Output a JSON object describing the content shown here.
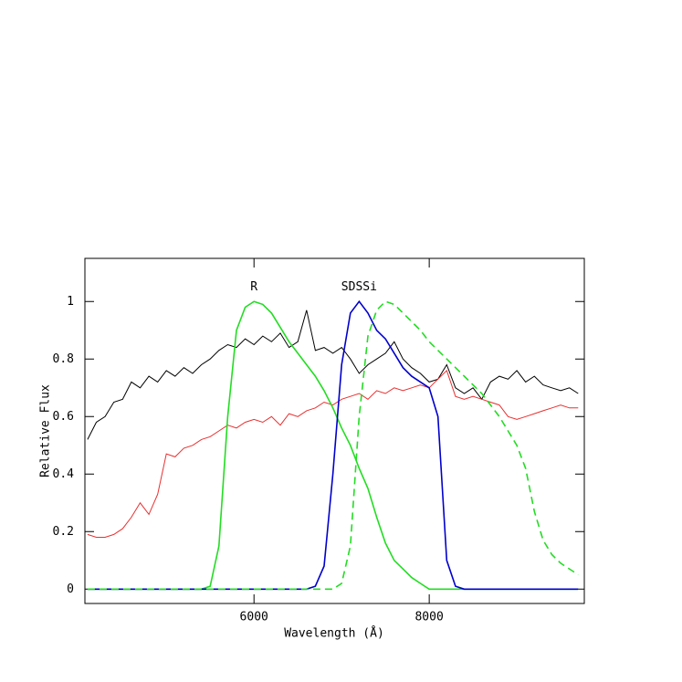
{
  "chart_data": {
    "type": "line",
    "xlabel": "Wavelength (Å)",
    "ylabel": "Relative Flux",
    "xlim": [
      4070,
      9770
    ],
    "ylim": [
      -0.05,
      1.15
    ],
    "xticks": [
      6000,
      8000
    ],
    "yticks": [
      0,
      0.2,
      0.4,
      0.6,
      0.8,
      1
    ],
    "series": [
      {
        "color": "#000000",
        "x": [
          4100,
          4200,
          4300,
          4400,
          4500,
          4600,
          4700,
          4800,
          4900,
          5000,
          5100,
          5200,
          5300,
          5400,
          5500,
          5600,
          5700,
          5800,
          5900,
          6000,
          6100,
          6200,
          6300,
          6400,
          6500,
          6600,
          6700,
          6800,
          6900,
          7000,
          7100,
          7200,
          7300,
          7400,
          7500,
          7600,
          7700,
          7800,
          7900,
          8000,
          8100,
          8200,
          8300,
          8400,
          8500,
          8600,
          8700,
          8800,
          8900,
          9000,
          9100,
          9200,
          9300,
          9400,
          9500,
          9600,
          9700
        ],
        "values": [
          0.52,
          0.58,
          0.6,
          0.65,
          0.66,
          0.72,
          0.7,
          0.74,
          0.72,
          0.76,
          0.74,
          0.77,
          0.75,
          0.78,
          0.8,
          0.83,
          0.85,
          0.84,
          0.87,
          0.85,
          0.88,
          0.86,
          0.89,
          0.84,
          0.86,
          0.97,
          0.83,
          0.84,
          0.82,
          0.84,
          0.8,
          0.75,
          0.78,
          0.8,
          0.82,
          0.86,
          0.8,
          0.77,
          0.75,
          0.72,
          0.73,
          0.78,
          0.7,
          0.68,
          0.7,
          0.66,
          0.72,
          0.74,
          0.73,
          0.76,
          0.72,
          0.74,
          0.71,
          0.7,
          0.69,
          0.7,
          0.68
        ]
      },
      {
        "color": "#e83030",
        "x": [
          4100,
          4200,
          4300,
          4400,
          4500,
          4600,
          4700,
          4800,
          4900,
          5000,
          5100,
          5200,
          5300,
          5400,
          5500,
          5600,
          5700,
          5800,
          5900,
          6000,
          6100,
          6200,
          6300,
          6400,
          6500,
          6600,
          6700,
          6800,
          6900,
          7000,
          7100,
          7200,
          7300,
          7400,
          7500,
          7600,
          7700,
          7800,
          7900,
          8000,
          8100,
          8200,
          8300,
          8400,
          8500,
          8600,
          8700,
          8800,
          8900,
          9000,
          9100,
          9200,
          9300,
          9400,
          9500,
          9600,
          9700
        ],
        "values": [
          0.19,
          0.18,
          0.18,
          0.19,
          0.21,
          0.25,
          0.3,
          0.26,
          0.33,
          0.47,
          0.46,
          0.49,
          0.5,
          0.52,
          0.53,
          0.55,
          0.57,
          0.56,
          0.58,
          0.59,
          0.58,
          0.6,
          0.57,
          0.61,
          0.6,
          0.62,
          0.63,
          0.65,
          0.64,
          0.66,
          0.67,
          0.68,
          0.66,
          0.69,
          0.68,
          0.7,
          0.69,
          0.7,
          0.71,
          0.7,
          0.73,
          0.76,
          0.67,
          0.66,
          0.67,
          0.66,
          0.65,
          0.64,
          0.6,
          0.59,
          0.6,
          0.61,
          0.62,
          0.63,
          0.64,
          0.63,
          0.63
        ]
      },
      {
        "name": "R",
        "color": "#22dd22",
        "x": [
          4100,
          5400,
          5500,
          5600,
          5700,
          5800,
          5900,
          6000,
          6100,
          6200,
          6300,
          6400,
          6500,
          6600,
          6700,
          6800,
          6900,
          7000,
          7100,
          7200,
          7300,
          7400,
          7500,
          7600,
          7700,
          7800,
          7900,
          8000,
          9700
        ],
        "values": [
          0,
          0,
          0.01,
          0.15,
          0.6,
          0.9,
          0.98,
          1.0,
          0.99,
          0.96,
          0.91,
          0.86,
          0.82,
          0.78,
          0.74,
          0.69,
          0.63,
          0.56,
          0.5,
          0.42,
          0.35,
          0.25,
          0.16,
          0.1,
          0.07,
          0.04,
          0.02,
          0,
          0
        ]
      },
      {
        "name": "SDSSi",
        "color": "#0000cc",
        "x": [
          4100,
          6600,
          6700,
          6800,
          6900,
          7000,
          7100,
          7200,
          7300,
          7400,
          7500,
          7600,
          7700,
          7800,
          7900,
          8000,
          8100,
          8150,
          8200,
          8300,
          8400,
          9700
        ],
        "values": [
          0,
          0,
          0.01,
          0.08,
          0.4,
          0.78,
          0.96,
          1.0,
          0.96,
          0.9,
          0.87,
          0.82,
          0.77,
          0.74,
          0.72,
          0.7,
          0.6,
          0.35,
          0.1,
          0.01,
          0,
          0
        ]
      },
      {
        "color": "#22dd22",
        "dashed": true,
        "x": [
          4100,
          6900,
          7000,
          7100,
          7200,
          7300,
          7400,
          7500,
          7600,
          7700,
          7800,
          7900,
          8000,
          8200,
          8400,
          8600,
          8800,
          9000,
          9100,
          9200,
          9300,
          9400,
          9500,
          9700
        ],
        "values": [
          0,
          0,
          0.02,
          0.15,
          0.6,
          0.88,
          0.97,
          1.0,
          0.99,
          0.96,
          0.93,
          0.9,
          0.86,
          0.8,
          0.74,
          0.68,
          0.6,
          0.5,
          0.42,
          0.27,
          0.17,
          0.12,
          0.09,
          0.05
        ]
      }
    ]
  }
}
